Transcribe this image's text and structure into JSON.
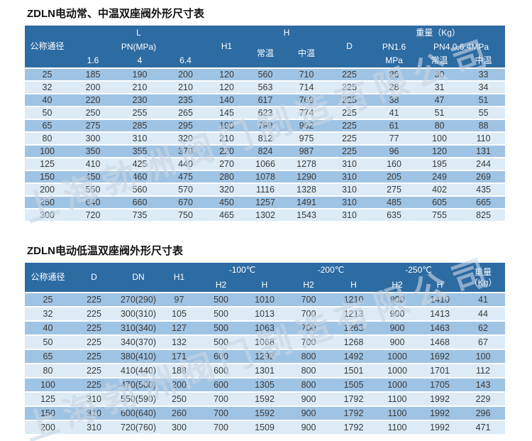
{
  "colors": {
    "header_bg": "#2d6ba3",
    "row_medium": "#9fc3e3",
    "row_light": "#dcebf6",
    "header_text": "#ffffff",
    "cell_text": "#3a3a3a"
  },
  "watermark": {
    "text": "上海勃洲阀门制造有限公司"
  },
  "table1": {
    "title": "ZDLN电动常、中温双座阀外形尺寸表",
    "header": {
      "nominal_diameter": "公称通径",
      "l": "L",
      "pn_mpa": "PN(MPa)",
      "pn_16": "1.6",
      "pn_4": "4",
      "pn_64": "6.4",
      "h1": "H1",
      "h": "H",
      "h_normal": "常温",
      "h_mid": "中温",
      "d": "D",
      "weight": "重量（Kg）",
      "w_pn16": "PN1.6",
      "w_mpa": "MPa",
      "w_pn40_64": "PN4.0,6.4MPa",
      "w_normal": "常温",
      "w_mid": "中温"
    },
    "rows": [
      [
        25,
        185,
        190,
        200,
        120,
        560,
        710,
        225,
        26,
        30,
        33
      ],
      [
        32,
        200,
        210,
        210,
        120,
        563,
        714,
        225,
        28,
        31,
        34
      ],
      [
        40,
        220,
        230,
        235,
        140,
        617,
        769,
        225,
        38,
        47,
        51
      ],
      [
        50,
        250,
        255,
        265,
        145,
        623,
        774,
        225,
        41,
        51,
        55
      ],
      [
        65,
        275,
        285,
        295,
        190,
        799,
        962,
        225,
        61,
        80,
        88
      ],
      [
        80,
        300,
        310,
        320,
        210,
        812,
        975,
        225,
        77,
        100,
        110
      ],
      [
        100,
        350,
        355,
        370,
        220,
        824,
        987,
        225,
        96,
        120,
        131
      ],
      [
        125,
        410,
        425,
        440,
        270,
        1066,
        1278,
        310,
        160,
        195,
        244
      ],
      [
        150,
        450,
        460,
        475,
        280,
        1078,
        1290,
        310,
        205,
        249,
        269
      ],
      [
        200,
        550,
        560,
        570,
        320,
        1116,
        1328,
        310,
        275,
        402,
        435
      ],
      [
        250,
        640,
        660,
        670,
        450,
        1257,
        1491,
        310,
        485,
        605,
        665
      ],
      [
        300,
        720,
        735,
        750,
        465,
        1302,
        1543,
        310,
        635,
        755,
        825
      ]
    ]
  },
  "table2": {
    "title": "ZDLN电动低温双座阀外形尺寸表",
    "header": {
      "nominal_diameter": "公称通径",
      "d": "D",
      "dn": "DN",
      "h1": "H1",
      "t100": "-100℃",
      "t200": "-200℃",
      "t250": "-250℃",
      "h2": "H2",
      "h": "H",
      "weight_line1": "重量",
      "weight_line2": "（Kg）"
    },
    "rows": [
      [
        25,
        225,
        "270(290)",
        97,
        500,
        1010,
        700,
        1210,
        900,
        1410,
        41
      ],
      [
        32,
        225,
        "300(310)",
        105,
        500,
        1013,
        700,
        1213,
        900,
        1413,
        44
      ],
      [
        40,
        225,
        "310(340)",
        127,
        500,
        1063,
        700,
        1263,
        900,
        1463,
        62
      ],
      [
        50,
        225,
        "340(370)",
        132,
        500,
        1068,
        700,
        1268,
        900,
        1468,
        67
      ],
      [
        65,
        225,
        "380(410)",
        171,
        600,
        1292,
        800,
        1492,
        1000,
        1692,
        100
      ],
      [
        80,
        225,
        "410(440)",
        188,
        600,
        1301,
        800,
        1501,
        1000,
        1701,
        112
      ],
      [
        100,
        225,
        "470(500)",
        200,
        600,
        1305,
        800,
        1505,
        1000,
        1705,
        143
      ],
      [
        125,
        310,
        "550(590)",
        250,
        700,
        1592,
        900,
        1792,
        1100,
        1992,
        229
      ],
      [
        150,
        310,
        "600(640)",
        260,
        700,
        1592,
        900,
        1792,
        1100,
        1992,
        296
      ],
      [
        200,
        310,
        "720(760)",
        300,
        700,
        1509,
        900,
        1792,
        1100,
        1992,
        471
      ]
    ]
  }
}
